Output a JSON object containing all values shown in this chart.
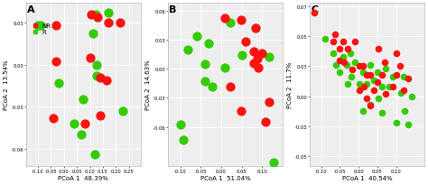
{
  "panels": [
    {
      "label": "A",
      "xlabel": "PCoA 1  48.39%",
      "ylabel": "PCoA 2  13.54%",
      "xlim": [
        -0.145,
        0.295
      ],
      "ylim": [
        -0.072,
        0.044
      ],
      "xtick_vals": [
        -0.1,
        -0.05,
        0.0,
        0.05,
        0.1,
        0.15,
        0.2,
        0.25
      ],
      "ytick_vals": [
        -0.06,
        -0.03,
        0.0,
        0.03
      ],
      "NR_x": [
        0.105,
        0.13,
        0.172,
        0.215,
        -0.032,
        -0.03,
        0.138,
        0.165,
        0.14,
        -0.04,
        0.08,
        0.102
      ],
      "NR_y": [
        0.036,
        0.034,
        0.03,
        0.03,
        0.028,
        0.002,
        -0.009,
        -0.011,
        -0.036,
        -0.038,
        -0.042,
        0.005
      ],
      "R_x": [
        0.123,
        0.17,
        -0.1,
        -0.09,
        0.112,
        0.125,
        0.126,
        -0.02,
        0.072,
        0.04,
        0.068,
        0.12,
        0.225
      ],
      "R_y": [
        0.036,
        0.037,
        0.028,
        0.028,
        0.022,
        0.0,
        -0.008,
        -0.013,
        -0.025,
        -0.042,
        -0.05,
        -0.064,
        -0.033
      ]
    },
    {
      "label": "B",
      "xlabel": "PCoA 1  51.04%",
      "ylabel": "PCoA 2  14.63%",
      "xlim": [
        -0.13,
        0.15
      ],
      "ylim": [
        -0.1,
        0.068
      ],
      "xtick_vals": [
        -0.1,
        -0.05,
        0.0,
        0.05,
        0.1
      ],
      "ytick_vals": [
        -0.06,
        -0.03,
        0.0,
        0.03,
        0.06
      ],
      "NR_x": [
        0.01,
        0.048,
        0.085,
        0.06,
        0.08,
        0.1,
        0.088,
        0.08,
        0.09,
        0.022,
        0.048,
        0.118,
        0.108
      ],
      "NR_y": [
        0.052,
        0.05,
        0.042,
        0.028,
        0.018,
        0.016,
        0.01,
        0.006,
        0.001,
        -0.018,
        -0.044,
        -0.034,
        -0.055
      ],
      "R_x": [
        0.022,
        -0.06,
        -0.03,
        -0.082,
        -0.04,
        0.01,
        -0.04,
        -0.022,
        0.05,
        0.118,
        -0.1,
        -0.092,
        0.128
      ],
      "R_y": [
        0.048,
        0.034,
        0.026,
        0.02,
        0.005,
        0.001,
        -0.013,
        -0.018,
        0.014,
        0.012,
        -0.058,
        -0.073,
        -0.097
      ]
    },
    {
      "label": "C",
      "xlabel": "PCoA 1  40.54%",
      "ylabel": "PCoA 2  11.7%",
      "xlim": [
        -0.13,
        0.175
      ],
      "ylim": [
        -0.058,
        0.078
      ],
      "xtick_vals": [
        -0.1,
        -0.05,
        0.0,
        0.05,
        0.1
      ],
      "ytick_vals": [
        -0.05,
        -0.025,
        0.0,
        0.025,
        0.05,
        0.075
      ],
      "NR_x": [
        -0.118,
        -0.062,
        -0.068,
        -0.052,
        -0.05,
        -0.042,
        -0.038,
        -0.03,
        -0.018,
        -0.01,
        0.002,
        0.002,
        0.012,
        0.013,
        0.022,
        0.021,
        0.032,
        0.031,
        0.041,
        0.052,
        0.051,
        0.062,
        0.07,
        0.071,
        0.09,
        0.1,
        0.101,
        0.11,
        0.121,
        0.131
      ],
      "NR_y": [
        0.07,
        0.052,
        0.046,
        0.04,
        0.03,
        0.046,
        0.028,
        0.04,
        0.022,
        0.046,
        0.025,
        0.005,
        0.025,
        0.008,
        0.018,
        -0.002,
        0.018,
        -0.008,
        0.005,
        0.04,
        0.012,
        0.018,
        0.028,
        0.002,
        0.008,
        0.036,
        0.018,
        0.025,
        0.005,
        0.015
      ],
      "R_x": [
        -0.09,
        -0.068,
        -0.06,
        -0.051,
        -0.041,
        -0.031,
        -0.03,
        -0.021,
        -0.02,
        -0.01,
        0.001,
        0.011,
        0.012,
        0.022,
        0.031,
        0.03,
        0.041,
        0.051,
        0.052,
        0.062,
        0.063,
        0.071,
        0.081,
        0.091,
        0.101,
        0.112,
        0.121,
        0.122,
        0.131,
        0.141
      ],
      "R_y": [
        0.048,
        0.036,
        0.026,
        0.02,
        0.033,
        0.026,
        0.01,
        0.036,
        0.016,
        0.028,
        0.01,
        -0.012,
        0.02,
        0.01,
        0.026,
        -0.007,
        0.013,
        0.02,
        -0.002,
        0.008,
        -0.014,
        0.023,
        0.008,
        0.016,
        -0.022,
        0.003,
        0.016,
        -0.012,
        -0.024,
        0.0
      ]
    }
  ],
  "NR_color": "#ff1111",
  "R_color": "#33cc00",
  "dot_size_A": 55,
  "dot_size_B": 55,
  "dot_size_C": 30,
  "bg_color": "#eeeeee",
  "grid_color": "#ffffff"
}
